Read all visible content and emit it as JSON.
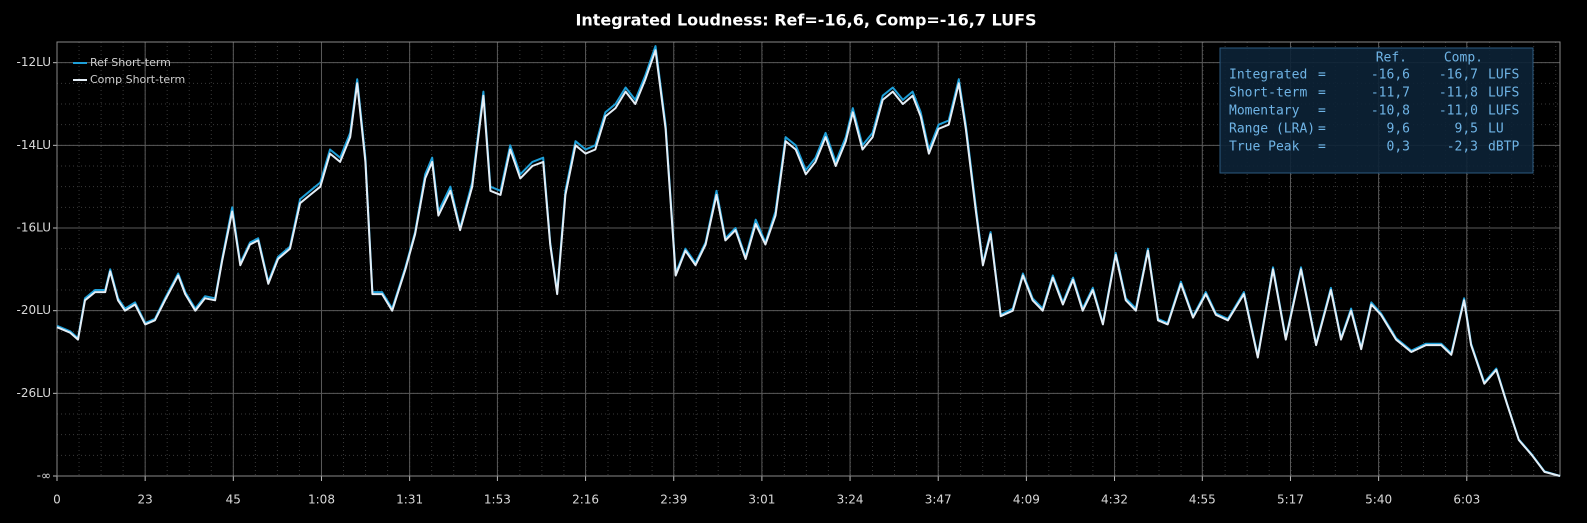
{
  "chart_data": {
    "type": "line",
    "title": "Integrated Loudness: Ref=-16,6, Comp=-16,7 LUFS",
    "yscale": "even-tick-spacing",
    "grid": true,
    "legend": "top-left",
    "xlim": [
      0,
      387
    ],
    "xticks": [
      0,
      {
        "value": 22.7,
        "label": "23"
      },
      {
        "value": 45.4,
        "label": "45"
      },
      {
        "value": 68.1,
        "label": "1:08"
      },
      {
        "value": 90.8,
        "label": "1:31"
      },
      {
        "value": 113.4,
        "label": "1:53"
      },
      {
        "value": 136.1,
        "label": "2:16"
      },
      {
        "value": 158.8,
        "label": "2:39"
      },
      {
        "value": 181.5,
        "label": "3:01"
      },
      {
        "value": 204.2,
        "label": "3:24"
      },
      {
        "value": 226.9,
        "label": "3:47"
      },
      {
        "value": 249.6,
        "label": "4:09"
      },
      {
        "value": 272.3,
        "label": "4:32"
      },
      {
        "value": 294.9,
        "label": "4:55"
      },
      {
        "value": 317.6,
        "label": "5:17"
      },
      {
        "value": 340.3,
        "label": "5:40"
      },
      {
        "value": 363,
        "label": "6:03"
      }
    ],
    "ylim": [
      -40,
      -11.5
    ],
    "yticks": [
      {
        "value": -12,
        "label": "-12LU"
      },
      {
        "value": -14,
        "label": "-14LU"
      },
      {
        "value": -16,
        "label": "-16LU"
      },
      {
        "value": -20,
        "label": "-20LU"
      },
      {
        "value": -26,
        "label": "-26LU"
      },
      {
        "value": -40,
        "label": "-∞"
      }
    ],
    "x": [
      0,
      3.4,
      5.4,
      7.2,
      9.8,
      12.4,
      13.7,
      15.7,
      17.5,
      20.1,
      22.7,
      25.2,
      27.8,
      31.2,
      33.0,
      35.6,
      38.1,
      40.7,
      42.5,
      45.1,
      47.2,
      49.7,
      51.8,
      54.4,
      56.9,
      60.0,
      62.6,
      65.2,
      67.8,
      70.3,
      72.9,
      75.5,
      77.3,
      79.4,
      81.2,
      83.7,
      86.3,
      89.7,
      92.2,
      94.8,
      96.6,
      98.2,
      101.3,
      103.8,
      106.9,
      109.8,
      111.6,
      114.2,
      116.7,
      119.3,
      122.4,
      125.2,
      127.0,
      128.8,
      130.9,
      133.5,
      136.1,
      138.6,
      141.2,
      143.8,
      146.4,
      148.9,
      151.5,
      154.1,
      156.7,
      159.3,
      161.8,
      164.4,
      167.0,
      169.8,
      172.1,
      174.7,
      177.3,
      179.9,
      182.4,
      185.0,
      187.6,
      190.2,
      192.8,
      195.3,
      197.9,
      200.5,
      203.1,
      204.9,
      207.4,
      210.0,
      212.6,
      215.2,
      217.8,
      220.3,
      222.4,
      224.5,
      227.0,
      229.6,
      232.2,
      234.0,
      236.6,
      238.4,
      240.4,
      243.0,
      246.1,
      248.7,
      251.2,
      253.8,
      256.4,
      259.0,
      261.6,
      264.1,
      266.7,
      269.3,
      272.6,
      275.2,
      277.8,
      280.9,
      283.5,
      286.0,
      289.4,
      292.5,
      295.8,
      298.4,
      301.5,
      305.6,
      309.2,
      313.1,
      316.4,
      320.3,
      324.2,
      328.0,
      330.6,
      333.2,
      335.8,
      338.4,
      340.9,
      344.8,
      348.7,
      352.5,
      356.4,
      359.0,
      362.3,
      364.1,
      367.5,
      370.6,
      373.4,
      376.4,
      379.8,
      383.0,
      387.0
    ],
    "series": [
      {
        "name": "Ref Short-term",
        "color": "#1e9fd8",
        "values": [
          -21.1,
          -21.5,
          -22.0,
          -19.4,
          -19.0,
          -19.0,
          -18.0,
          -19.4,
          -19.9,
          -19.6,
          -20.9,
          -20.6,
          -19.4,
          -18.2,
          -19.1,
          -19.9,
          -19.3,
          -19.4,
          -17.5,
          -15.5,
          -17.7,
          -16.7,
          -16.5,
          -18.6,
          -17.4,
          -16.9,
          -15.3,
          -15.1,
          -14.9,
          -14.1,
          -14.3,
          -13.7,
          -12.4,
          -14.3,
          -19.1,
          -19.1,
          -19.9,
          -17.9,
          -16.2,
          -14.7,
          -14.3,
          -15.6,
          -15.0,
          -16.0,
          -14.9,
          -12.7,
          -15.0,
          -15.1,
          -14.0,
          -14.7,
          -14.4,
          -14.3,
          -16.7,
          -19.1,
          -15.1,
          -13.9,
          -14.1,
          -14.0,
          -13.2,
          -13.0,
          -12.6,
          -12.9,
          -12.3,
          -11.6,
          -13.5,
          -18.2,
          -17.0,
          -17.7,
          -16.7,
          -15.1,
          -16.5,
          -16.0,
          -17.4,
          -15.8,
          -16.7,
          -15.6,
          -13.8,
          -14.0,
          -14.6,
          -14.3,
          -13.7,
          -14.4,
          -13.8,
          -13.1,
          -14.0,
          -13.7,
          -12.8,
          -12.6,
          -12.9,
          -12.7,
          -13.2,
          -14.1,
          -13.5,
          -13.4,
          -12.4,
          -13.5,
          -15.5,
          -17.7,
          -16.2,
          -20.3,
          -19.9,
          -18.2,
          -19.4,
          -19.9,
          -18.3,
          -19.6,
          -18.4,
          -19.9,
          -18.9,
          -20.9,
          -17.2,
          -19.4,
          -19.9,
          -17.0,
          -20.6,
          -20.9,
          -18.6,
          -20.4,
          -19.1,
          -20.2,
          -20.6,
          -19.1,
          -23.3,
          -17.9,
          -22.0,
          -17.9,
          -22.4,
          -18.9,
          -22.0,
          -19.9,
          -22.7,
          -19.6,
          -20.2,
          -22.0,
          -22.9,
          -22.4,
          -22.4,
          -23.1,
          -19.4,
          -22.4,
          -25.2,
          -24.2,
          -27.8,
          -33.8,
          -36.4,
          -39.2,
          -40
        ]
      },
      {
        "name": "Comp Short-term",
        "color": "#e4eef6",
        "values": [
          -21.2,
          -21.6,
          -22.1,
          -19.5,
          -19.1,
          -19.1,
          -18.1,
          -19.5,
          -20.0,
          -19.7,
          -21.0,
          -20.7,
          -19.5,
          -18.3,
          -19.2,
          -20.0,
          -19.4,
          -19.5,
          -17.6,
          -15.6,
          -17.8,
          -16.8,
          -16.6,
          -18.7,
          -17.5,
          -17.0,
          -15.4,
          -15.2,
          -15.0,
          -14.2,
          -14.4,
          -13.8,
          -12.5,
          -14.4,
          -19.2,
          -19.2,
          -20.0,
          -18.0,
          -16.3,
          -14.8,
          -14.4,
          -15.7,
          -15.1,
          -16.1,
          -15.0,
          -12.8,
          -15.1,
          -15.2,
          -14.1,
          -14.8,
          -14.5,
          -14.4,
          -16.8,
          -19.2,
          -15.2,
          -14.0,
          -14.2,
          -14.1,
          -13.3,
          -13.1,
          -12.7,
          -13.0,
          -12.4,
          -11.7,
          -13.6,
          -18.3,
          -17.1,
          -17.8,
          -16.8,
          -15.2,
          -16.6,
          -16.1,
          -17.5,
          -15.9,
          -16.8,
          -15.7,
          -13.9,
          -14.1,
          -14.7,
          -14.4,
          -13.8,
          -14.5,
          -13.9,
          -13.2,
          -14.1,
          -13.8,
          -12.9,
          -12.7,
          -13.0,
          -12.8,
          -13.3,
          -14.2,
          -13.6,
          -13.5,
          -12.5,
          -13.6,
          -15.6,
          -17.8,
          -16.3,
          -20.4,
          -20.0,
          -18.3,
          -19.5,
          -20.0,
          -18.4,
          -19.7,
          -18.5,
          -20.0,
          -19.0,
          -21.0,
          -17.3,
          -19.5,
          -20.0,
          -17.1,
          -20.7,
          -21.0,
          -18.7,
          -20.5,
          -19.2,
          -20.3,
          -20.7,
          -19.2,
          -23.4,
          -18.0,
          -22.1,
          -18.0,
          -22.5,
          -19.0,
          -22.1,
          -20.0,
          -22.8,
          -19.7,
          -20.3,
          -22.1,
          -23.0,
          -22.5,
          -22.5,
          -23.2,
          -19.5,
          -22.5,
          -25.3,
          -24.3,
          -27.9,
          -33.9,
          -36.5,
          -39.3,
          -40
        ]
      }
    ],
    "stats_table": {
      "header": [
        "Ref.",
        "Comp."
      ],
      "rows": [
        [
          "Integrated",
          "=",
          "-16,6",
          "-16,7",
          "LUFS"
        ],
        [
          "Short-term",
          "=",
          "-11,7",
          "-11,8",
          "LUFS"
        ],
        [
          "Momentary",
          "=",
          "-10,8",
          "-11,0",
          "LUFS"
        ],
        [
          "Range (LRA)",
          "=",
          "9,6",
          "9,5",
          "LU"
        ],
        [
          "True Peak",
          "=",
          "0,3",
          "-2,3",
          "dBTP"
        ]
      ]
    }
  }
}
